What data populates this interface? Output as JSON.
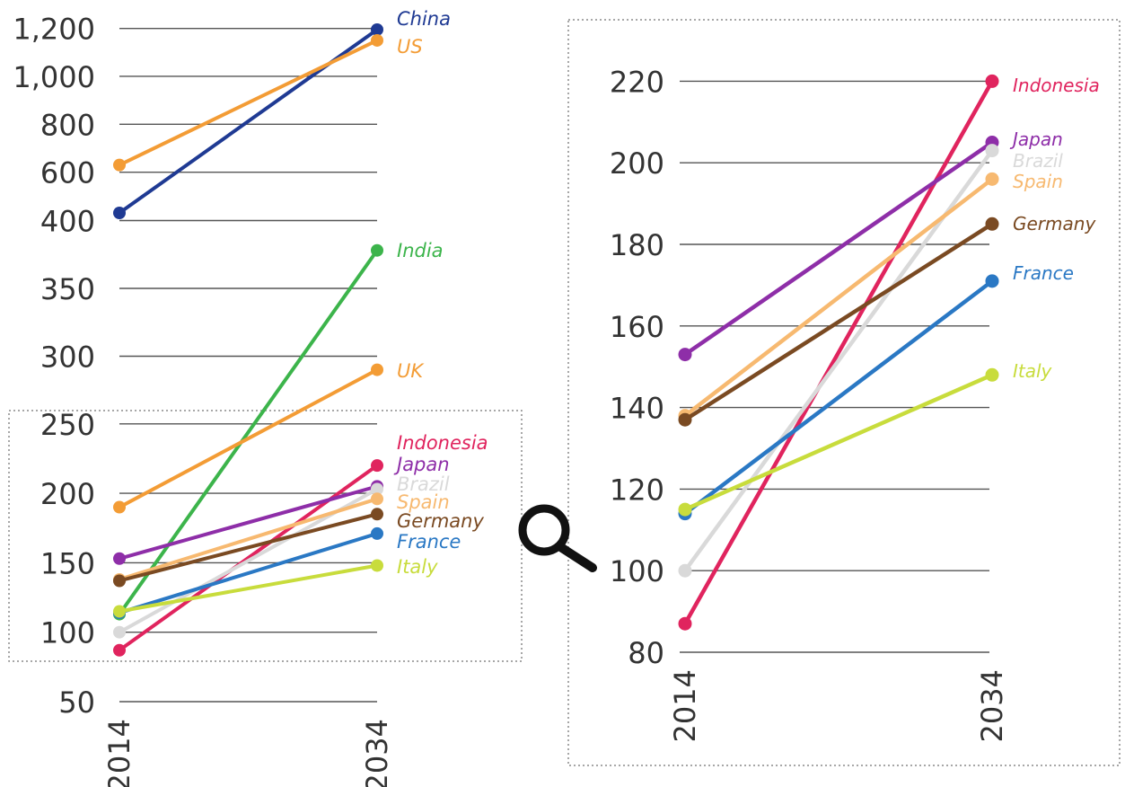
{
  "chart_data": [
    {
      "type": "line",
      "title": "",
      "xlabel": "",
      "ylabel": "",
      "categories": [
        "2014",
        "2034"
      ],
      "axis_break": "broken y axis: 50–250 lower segment, 250–400 middle segment, 400–1,200 upper segment",
      "y_ticks": [
        "50",
        "100",
        "150",
        "200",
        "250",
        "300",
        "350",
        "400",
        "600",
        "800",
        "1,000",
        "1,200"
      ],
      "grid": true,
      "series": [
        {
          "name": "China",
          "color": "#1f3a93",
          "values": [
            430,
            1195
          ]
        },
        {
          "name": "US",
          "color": "#f39c35",
          "values": [
            630,
            1150
          ]
        },
        {
          "name": "India",
          "color": "#3cb44b",
          "values": [
            113,
            378
          ]
        },
        {
          "name": "UK",
          "color": "#f39c35",
          "values": [
            190,
            290
          ]
        },
        {
          "name": "Indonesia",
          "color": "#e0245e",
          "values": [
            87,
            220
          ]
        },
        {
          "name": "Japan",
          "color": "#8e2ea8",
          "values": [
            153,
            205
          ]
        },
        {
          "name": "Brazil",
          "color": "#d9d9d9",
          "values": [
            100,
            203
          ]
        },
        {
          "name": "Spain",
          "color": "#f7b970",
          "values": [
            138,
            196
          ]
        },
        {
          "name": "Germany",
          "color": "#7a4a22",
          "values": [
            137,
            185
          ]
        },
        {
          "name": "France",
          "color": "#2a78c4",
          "values": [
            114,
            171
          ]
        },
        {
          "name": "Italy",
          "color": "#c8dc3c",
          "values": [
            115,
            148
          ]
        }
      ]
    },
    {
      "type": "line",
      "title": "",
      "xlabel": "",
      "ylabel": "",
      "categories": [
        "2014",
        "2034"
      ],
      "ylim": [
        80,
        220
      ],
      "y_ticks": [
        "80",
        "100",
        "120",
        "140",
        "160",
        "180",
        "200",
        "220"
      ],
      "grid": true,
      "series": [
        {
          "name": "Indonesia",
          "color": "#e0245e",
          "values": [
            87,
            220
          ]
        },
        {
          "name": "Japan",
          "color": "#8e2ea8",
          "values": [
            153,
            205
          ]
        },
        {
          "name": "Brazil",
          "color": "#d9d9d9",
          "values": [
            100,
            203
          ]
        },
        {
          "name": "Spain",
          "color": "#f7b970",
          "values": [
            138,
            196
          ]
        },
        {
          "name": "Germany",
          "color": "#7a4a22",
          "values": [
            137,
            185
          ]
        },
        {
          "name": "France",
          "color": "#2a78c4",
          "values": [
            114,
            171
          ]
        },
        {
          "name": "Italy",
          "color": "#c8dc3c",
          "values": [
            115,
            148
          ]
        }
      ]
    }
  ],
  "zoom_icon": "magnifier-icon"
}
